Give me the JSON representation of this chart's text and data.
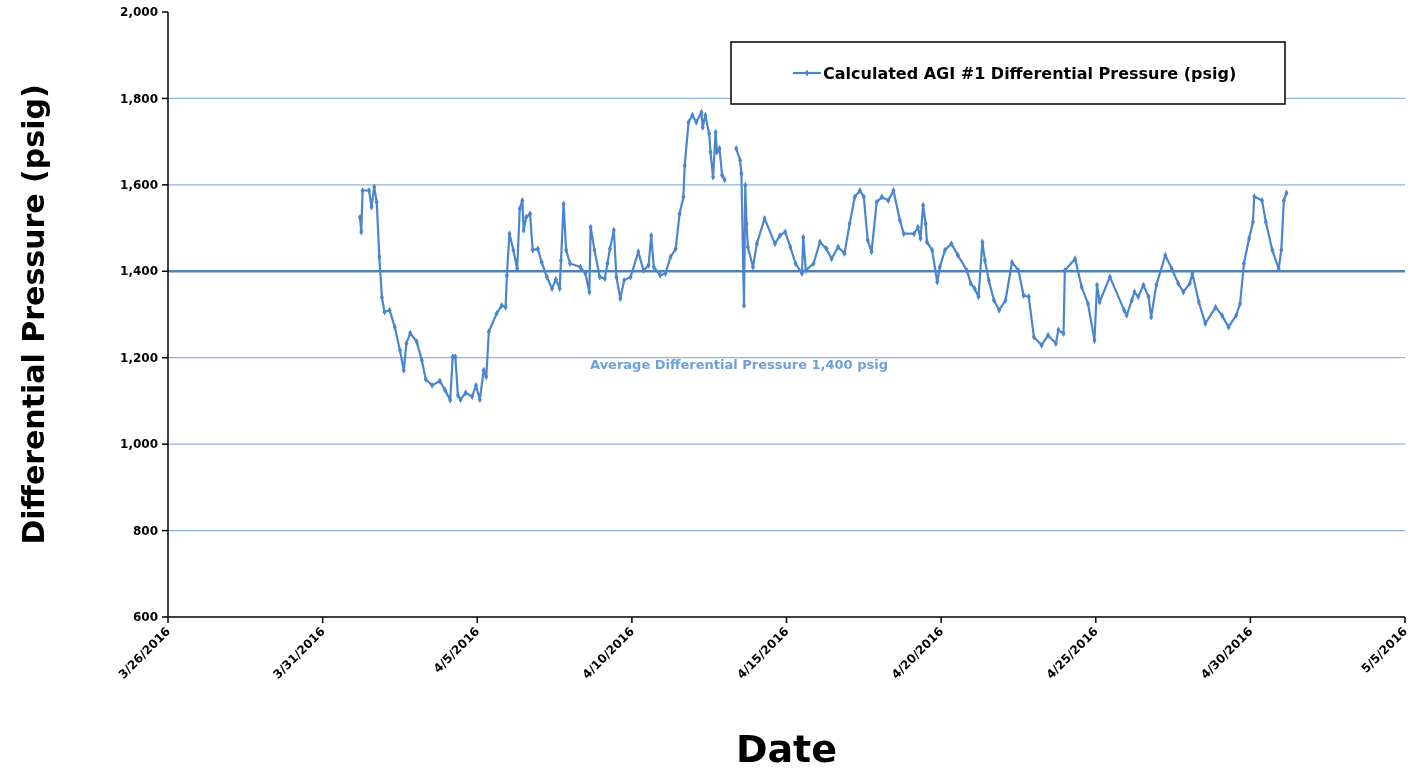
{
  "chart_data": {
    "type": "line",
    "xlabel": "Date",
    "ylabel": "Differential Pressure (psig)",
    "ylim": [
      600,
      2000
    ],
    "yticks": [
      {
        "value": 600,
        "label": "600"
      },
      {
        "value": 800,
        "label": "800"
      },
      {
        "value": 1000,
        "label": "1,000"
      },
      {
        "value": 1200,
        "label": "1,200"
      },
      {
        "value": 1400,
        "label": "1,400"
      },
      {
        "value": 1600,
        "label": "1,600"
      },
      {
        "value": 1800,
        "label": "1,800"
      },
      {
        "value": 2000,
        "label": "2,000"
      }
    ],
    "xlim": [
      "2016-03-26",
      "2016-05-05"
    ],
    "xticks": [
      {
        "value": "2016-03-26",
        "label": "3/26/2016"
      },
      {
        "value": "2016-03-31",
        "label": "3/31/2016"
      },
      {
        "value": "2016-04-05",
        "label": "4/5/2016"
      },
      {
        "value": "2016-04-10",
        "label": "4/10/2016"
      },
      {
        "value": "2016-04-15",
        "label": "4/15/2016"
      },
      {
        "value": "2016-04-20",
        "label": "4/20/2016"
      },
      {
        "value": "2016-04-25",
        "label": "4/25/2016"
      },
      {
        "value": "2016-04-30",
        "label": "4/30/2016"
      },
      {
        "value": "2016-05-05",
        "label": "5/5/2016"
      }
    ],
    "grid": "y",
    "legend": "top right",
    "marker": "diamond",
    "line_style": "solid",
    "ref_lines": [
      {
        "axis": "y",
        "value": 1400,
        "label": "Average Differential Pressure 1,400 psig",
        "color": "#4f81bd"
      }
    ],
    "series": [
      {
        "name": "Calculated AGI #1 Differential Pressure (psig)",
        "color": "#4a86d0",
        "x": [
          "2016-04-01T05:00",
          "2016-04-01T06:00",
          "2016-04-01T07:00",
          "2016-04-01T12:00",
          "2016-04-01T14:00",
          "2016-04-01T16:00",
          "2016-04-01T18:00",
          "2016-04-01T20:00",
          "2016-04-01T22:00",
          "2016-04-02T00:00",
          "2016-04-02T04:00",
          "2016-04-02T08:00",
          "2016-04-02T12:00",
          "2016-04-02T15:00",
          "2016-04-02T17:00",
          "2016-04-02T20:00",
          "2016-04-03T01:00",
          "2016-04-03T05:00",
          "2016-04-03T08:00",
          "2016-04-03T13:00",
          "2016-04-03T19:00",
          "2016-04-03T23:00",
          "2016-04-04T03:00",
          "2016-04-04T05:00",
          "2016-04-04T07:00",
          "2016-04-04T09:00",
          "2016-04-04T11:00",
          "2016-04-04T15:00",
          "2016-04-04T20:00",
          "2016-04-04T23:00",
          "2016-04-05T02:00",
          "2016-04-05T05:00",
          "2016-04-05T07:00",
          "2016-04-05T09:00",
          "2016-04-05T15:00",
          "2016-04-05T19:00",
          "2016-04-05T22:00",
          "2016-04-05T23:00",
          "2016-04-06T01:00",
          "2016-04-06T04:00",
          "2016-04-06T07:00",
          "2016-04-06T09:00",
          "2016-04-06T11:00",
          "2016-04-06T12:00",
          "2016-04-06T14:00",
          "2016-04-06T17:00",
          "2016-04-06T19:00",
          "2016-04-06T23:00",
          "2016-04-07T02:00",
          "2016-04-07T06:00",
          "2016-04-07T10:00",
          "2016-04-07T13:00",
          "2016-04-07T16:00",
          "2016-04-07T17:00",
          "2016-04-07T19:00",
          "2016-04-07T21:00",
          "2016-04-08T00:00",
          "2016-04-08T08:00",
          "2016-04-08T12:00",
          "2016-04-08T15:00",
          "2016-04-08T16:00",
          "2016-04-08T19:00",
          "2016-04-08T23:00",
          "2016-04-09T03:00",
          "2016-04-09T05:00",
          "2016-04-09T07:00",
          "2016-04-09T10:00",
          "2016-04-09T12:00",
          "2016-04-09T15:00",
          "2016-04-09T18:00",
          "2016-04-09T23:00",
          "2016-04-10T05:00",
          "2016-04-10T09:00",
          "2016-04-10T13:00",
          "2016-04-10T15:00",
          "2016-04-10T17:00",
          "2016-04-10T22:00",
          "2016-04-11T02:00",
          "2016-04-11T06:00",
          "2016-04-11T10:00",
          "2016-04-11T13:00",
          "2016-04-11T16:00",
          "2016-04-11T17:00",
          "2016-04-11T20:00",
          "2016-04-11T23:00",
          "2016-04-12T02:00",
          "2016-04-12T06:00",
          "2016-04-12T07:00",
          "2016-04-12T09:00",
          "2016-04-12T12:00",
          "2016-04-12T13:00",
          "2016-04-12T15:00",
          "2016-04-12T17:00",
          "2016-04-12T18:00",
          "2016-04-12T20:00",
          "2016-04-12T22:00",
          "2016-04-13T00:00",
          "2016-04-13T04:00",
          "2016-04-13T09:00",
          "2016-04-13T12:00",
          "2016-04-13T13:00",
          "2016-04-13T15:00",
          "2016-04-13T16:00",
          "2016-04-13T17:00",
          "2016-04-13T18:00",
          "2016-04-13T22:00",
          "2016-04-14T01:00",
          "2016-04-14T07:00",
          "2016-04-14T15:00",
          "2016-04-14T19:00",
          "2016-04-14T23:00",
          "2016-04-15T03:00",
          "2016-04-15T07:00",
          "2016-04-15T12:00",
          "2016-04-15T13:00",
          "2016-04-15T15:00",
          "2016-04-15T21:00",
          "2016-04-16T02:00",
          "2016-04-16T07:00",
          "2016-04-16T11:00",
          "2016-04-16T16:00",
          "2016-04-16T21:00",
          "2016-04-17T01:00",
          "2016-04-17T05:00",
          "2016-04-17T09:00",
          "2016-04-17T12:00",
          "2016-04-17T15:00",
          "2016-04-17T18:00",
          "2016-04-17T22:00",
          "2016-04-18T02:00",
          "2016-04-18T07:00",
          "2016-04-18T11:00",
          "2016-04-18T16:00",
          "2016-04-18T19:00",
          "2016-04-19T03:00",
          "2016-04-19T06:00",
          "2016-04-19T08:00",
          "2016-04-19T10:00",
          "2016-04-19T12:00",
          "2016-04-19T13:00",
          "2016-04-19T17:00",
          "2016-04-19T21:00",
          "2016-04-19T23:00",
          "2016-04-20T03:00",
          "2016-04-20T08:00",
          "2016-04-20T13:00",
          "2016-04-20T20:00",
          "2016-04-20T23:00",
          "2016-04-21T02:00",
          "2016-04-21T05:00",
          "2016-04-21T08:00",
          "2016-04-21T10:00",
          "2016-04-21T13:00",
          "2016-04-21T17:00",
          "2016-04-21T21:00",
          "2016-04-22T02:00",
          "2016-04-22T07:00",
          "2016-04-22T12:00",
          "2016-04-22T16:00",
          "2016-04-22T20:00",
          "2016-04-23T00:00",
          "2016-04-23T06:00",
          "2016-04-23T11:00",
          "2016-04-23T17:00",
          "2016-04-23T19:00",
          "2016-04-23T23:00",
          "2016-04-24T00:00",
          "2016-04-24T08:00",
          "2016-04-24T13:00",
          "2016-04-24T18:00",
          "2016-04-24T23:00",
          "2016-04-25T01:00",
          "2016-04-25T03:00",
          "2016-04-25T11:00",
          "2016-04-25T22:00",
          "2016-04-26T00:00",
          "2016-04-26T04:00",
          "2016-04-26T06:00",
          "2016-04-26T09:00",
          "2016-04-26T13:00",
          "2016-04-26T17:00",
          "2016-04-26T19:00",
          "2016-04-26T23:00",
          "2016-04-27T06:00",
          "2016-04-27T11:00",
          "2016-04-27T16:00",
          "2016-04-27T20:00",
          "2016-04-28T01:00",
          "2016-04-28T03:00",
          "2016-04-28T08:00",
          "2016-04-28T13:00",
          "2016-04-28T21:00",
          "2016-04-29T02:00",
          "2016-04-29T07:00",
          "2016-04-29T13:00",
          "2016-04-29T16:00",
          "2016-04-29T19:00",
          "2016-04-29T23:00",
          "2016-04-30T02:00",
          "2016-04-30T03:00",
          "2016-04-30T09:00",
          "2016-04-30T12:00",
          "2016-04-30T17:00",
          "2016-04-30T22:00",
          "2016-05-01T00:00",
          "2016-05-01T02:00",
          "2016-05-01T04:00"
        ],
        "values": [
          1525,
          1491,
          1587,
          1587,
          1549,
          1595,
          1560,
          1433,
          1340,
          1306,
          1310,
          1271,
          1217,
          1171,
          1233,
          1257,
          1237,
          1194,
          1150,
          1136,
          1146,
          1125,
          1102,
          1202,
          1202,
          1113,
          1103,
          1119,
          1110,
          1136,
          1103,
          1171,
          1156,
          1260,
          1302,
          1321,
          1317,
          1391,
          1487,
          1449,
          1406,
          1545,
          1564,
          1495,
          1525,
          1533,
          1449,
          1452,
          1421,
          1387,
          1360,
          1381,
          1360,
          1425,
          1556,
          1449,
          1418,
          1410,
          1395,
          1352,
          1502,
          1449,
          1387,
          1383,
          1418,
          1452,
          1495,
          1387,
          1337,
          1379,
          1387,
          1445,
          1402,
          1414,
          1483,
          1410,
          1391,
          1395,
          1433,
          1452,
          1533,
          1572,
          1645,
          1745,
          1761,
          1745,
          1768,
          1733,
          1761,
          1718,
          1676,
          1618,
          1722,
          1676,
          1684,
          1622,
          1612,
          null,
          1684,
          1657,
          1626,
          1321,
          1599,
          1510,
          1456,
          1410,
          1464,
          1522,
          1464,
          1483,
          1491,
          1456,
          1418,
          1395,
          1479,
          1402,
          1418,
          1468,
          1452,
          1429,
          1456,
          1441,
          1510,
          1572,
          1587,
          1572,
          1472,
          1445,
          1560,
          1572,
          1564,
          1587,
          1518,
          1487,
          1487,
          1502,
          1476,
          1553,
          1510,
          1468,
          1449,
          1375,
          1410,
          1449,
          1464,
          1437,
          1402,
          1372,
          1360,
          1341,
          1468,
          1425,
          1379,
          1333,
          1310,
          1333,
          1421,
          1402,
          1344,
          1341,
          1248,
          1229,
          1252,
          1233,
          1264,
          1256,
          1402,
          1429,
          1364,
          1325,
          1240,
          1368,
          1329,
          1387,
          1310,
          1298,
          1333,
          1352,
          1341,
          1368,
          1341,
          1294,
          1368,
          1437,
          1406,
          1372,
          1352,
          1372,
          1395,
          1329,
          1279,
          1317,
          1298,
          1271,
          1298,
          1325,
          1418,
          1476,
          1514,
          1573,
          1564,
          1514,
          1449,
          1406,
          1449,
          1564,
          1581
        ]
      }
    ]
  }
}
